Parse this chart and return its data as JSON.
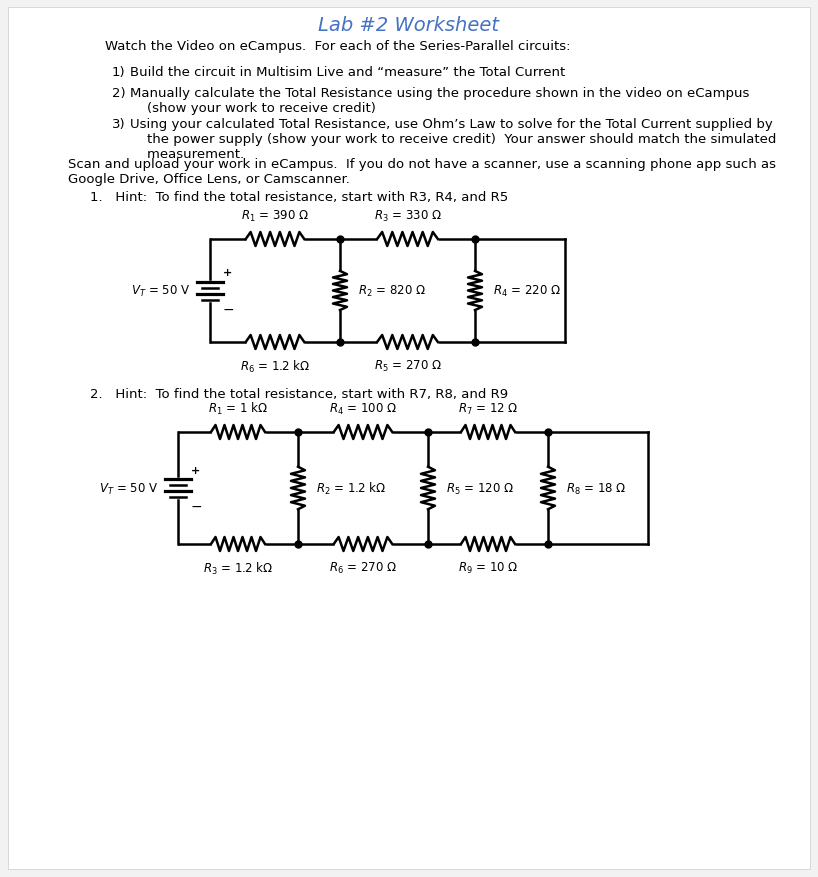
{
  "title": "Lab #2 Worksheet",
  "title_color": "#4472C4",
  "bg_color": "#f2f2f2",
  "intro_line": "Watch the Video on eCampus.  For each of the Series-Parallel circuits:",
  "items": [
    "Build the circuit in Multisim Live and “measure” the Total Current",
    "Manually calculate the Total Resistance using the procedure shown in the video on eCampus\n    (show your work to receive credit)",
    "Using your calculated Total Resistance, use Ohm’s Law to solve for the Total Current supplied by\n    the power supply (show your work to receive credit)  Your answer should match the simulated\n    measurement."
  ],
  "scan_text": "Scan and upload your work in eCampus.  If you do not have a scanner, use a scanning phone app such as\nGoogle Drive, Office Lens, or Camscanner.",
  "hint1": "1.   Hint:  To find the total resistance, start with R3, R4, and R5",
  "hint2": "2.   Hint:  To find the total resistance, start with R7, R8, and R9",
  "circuit1": {
    "VT": "50 V",
    "R1": "390 Ω",
    "R2": "820 Ω",
    "R3": "330 Ω",
    "R4": "220 Ω",
    "R5": "270 Ω",
    "R6": "1.2 kΩ"
  },
  "circuit2": {
    "VT": "50 V",
    "R1": "1 kΩ",
    "R2": "1.2 kΩ",
    "R3": "1.2 kΩ",
    "R4": "100 Ω",
    "R5": "120 Ω",
    "R6": "270 Ω",
    "R7": "12 Ω",
    "R8": "18 Ω",
    "R9": "10 Ω"
  }
}
